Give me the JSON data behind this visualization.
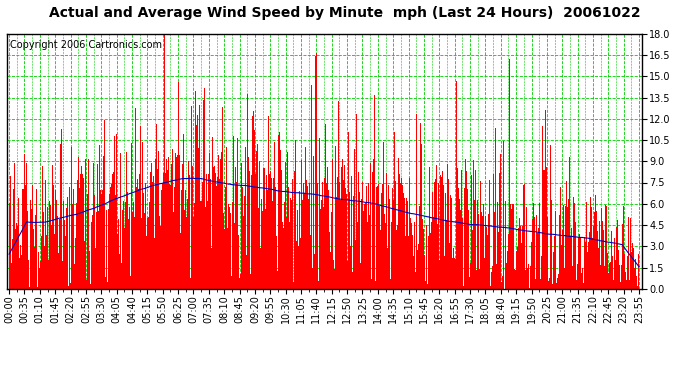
{
  "title": "Actual and Average Wind Speed by Minute  mph (Last 24 Hours)  20061022",
  "copyright_text": "Copyright 2006 Cartronics.com",
  "y_min": 0.0,
  "y_max": 18.0,
  "y_ticks": [
    0.0,
    1.5,
    3.0,
    4.5,
    6.0,
    7.5,
    9.0,
    10.5,
    12.0,
    13.5,
    15.0,
    16.5,
    18.0
  ],
  "x_tick_labels": [
    "00:00",
    "00:35",
    "01:10",
    "01:45",
    "02:20",
    "02:55",
    "03:30",
    "04:05",
    "04:40",
    "05:15",
    "05:50",
    "06:25",
    "07:00",
    "07:35",
    "08:10",
    "08:45",
    "09:20",
    "09:55",
    "10:30",
    "11:05",
    "11:40",
    "12:15",
    "12:50",
    "13:25",
    "14:00",
    "14:35",
    "15:10",
    "15:45",
    "16:20",
    "16:55",
    "17:30",
    "18:05",
    "18:40",
    "19:15",
    "19:50",
    "20:25",
    "21:00",
    "21:35",
    "22:10",
    "22:45",
    "23:20",
    "23:55"
  ],
  "num_minutes": 1440,
  "bar_color": "#FF0000",
  "line_color": "#0000BB",
  "background_color": "#FFFFFF",
  "plot_bg_color": "#FFFFFF",
  "grid_color": "#00CC00",
  "border_color": "#000000",
  "title_fontsize": 10,
  "copyright_fontsize": 7,
  "tick_fontsize": 7,
  "fig_width": 6.9,
  "fig_height": 3.75,
  "dpi": 100
}
